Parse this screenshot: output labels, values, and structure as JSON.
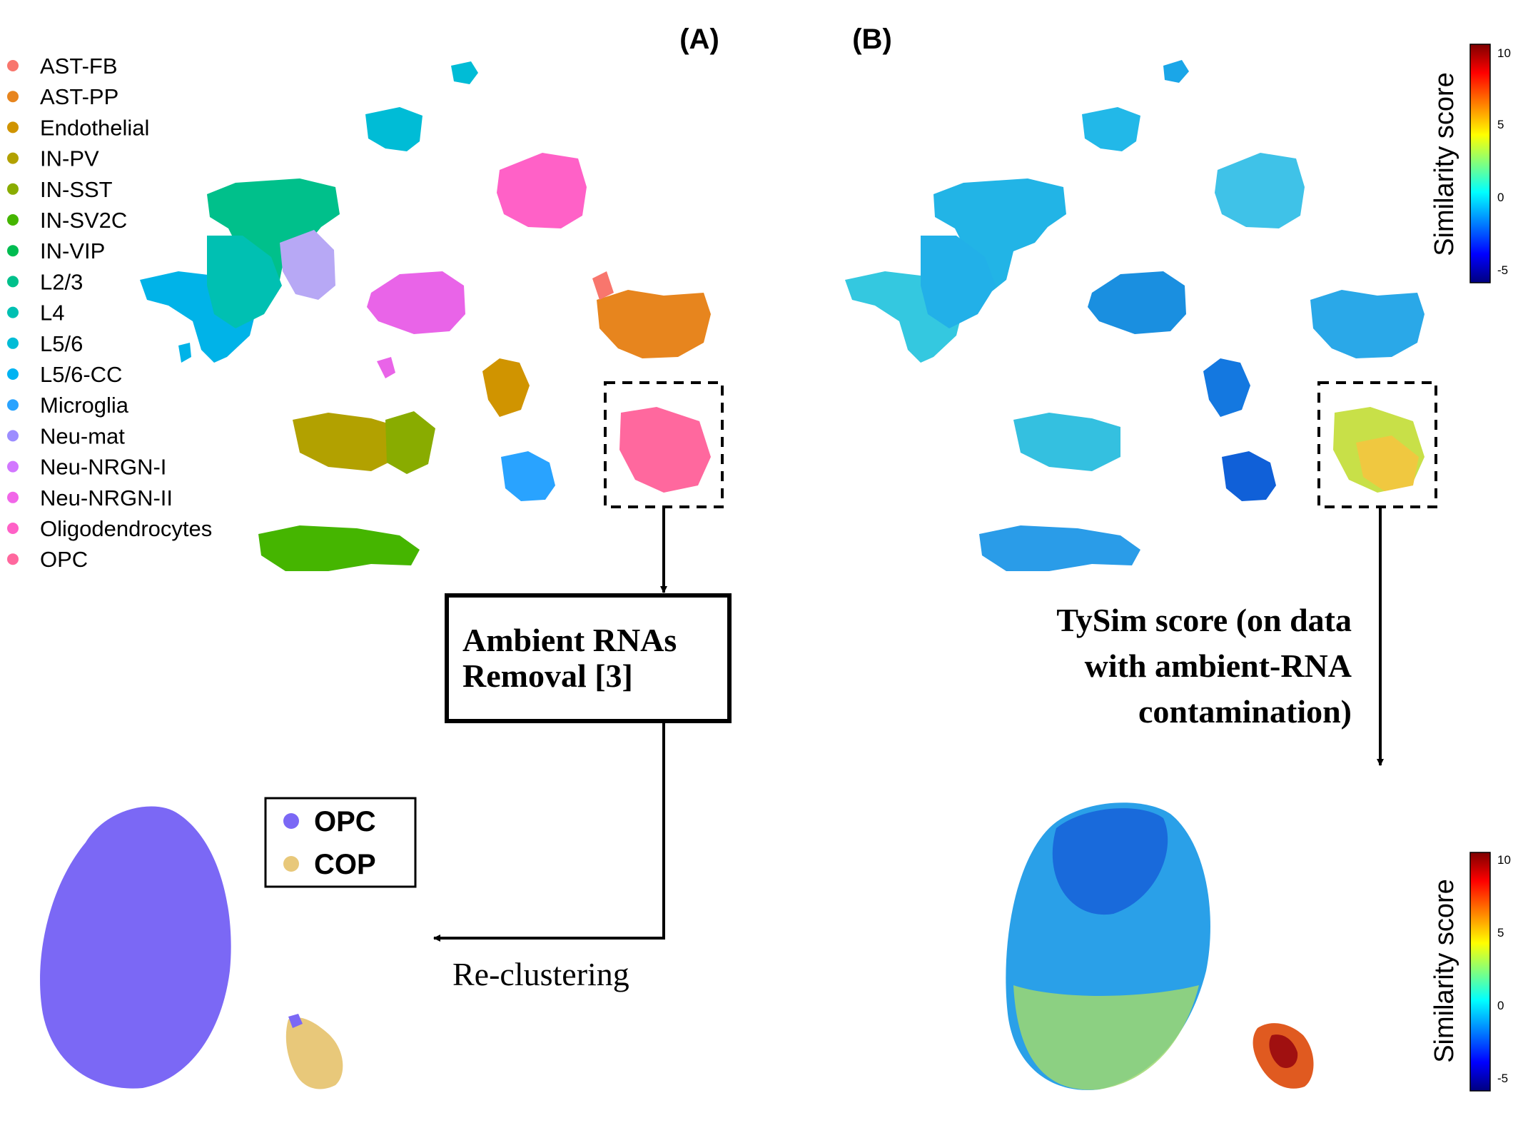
{
  "panel_labels": {
    "a": "(A)",
    "b": "(B)"
  },
  "legend": {
    "items": [
      {
        "label": "AST-FB",
        "color": "#F8766D"
      },
      {
        "label": "AST-PP",
        "color": "#E7851E"
      },
      {
        "label": "Endothelial",
        "color": "#D09400"
      },
      {
        "label": "IN-PV",
        "color": "#B2A100"
      },
      {
        "label": "IN-SST",
        "color": "#89AC00"
      },
      {
        "label": "IN-SV2C",
        "color": "#45B500"
      },
      {
        "label": "IN-VIP",
        "color": "#00BC51"
      },
      {
        "label": "L2/3",
        "color": "#00C08B"
      },
      {
        "label": "L4",
        "color": "#00C0B2"
      },
      {
        "label": "L5/6",
        "color": "#00BCD6"
      },
      {
        "label": "L5/6-CC",
        "color": "#00B3F2"
      },
      {
        "label": "Microglia",
        "color": "#29A3FF"
      },
      {
        "label": "Neu-mat",
        "color": "#9C8DFF"
      },
      {
        "label": "Neu-NRGN-I",
        "color": "#D277FF"
      },
      {
        "label": "Neu-NRGN-II",
        "color": "#F166E8"
      },
      {
        "label": "Oligodendrocytes",
        "color": "#FF61C7"
      },
      {
        "label": "OPC",
        "color": "#FF689E"
      }
    ]
  },
  "process_box": {
    "line1": "Ambient RNAs",
    "line2": "Removal [3]"
  },
  "reclustering_label": "Re-clustering",
  "tysim_note": {
    "line1": "TySim score (on data",
    "line2": "with ambient-RNA",
    "line3": "contamination)"
  },
  "subcluster_legend": {
    "items": [
      {
        "label": "OPC",
        "color": "#7B68F5"
      },
      {
        "label": "COP",
        "color": "#E8C87A"
      }
    ]
  },
  "colorbar": {
    "title": "Similarity score",
    "ticks": [
      "10",
      "5",
      "0",
      "-5"
    ],
    "colors": [
      "#7F0000",
      "#FF0000",
      "#FFFF00",
      "#00FFFF",
      "#0000FF",
      "#00007F"
    ]
  }
}
